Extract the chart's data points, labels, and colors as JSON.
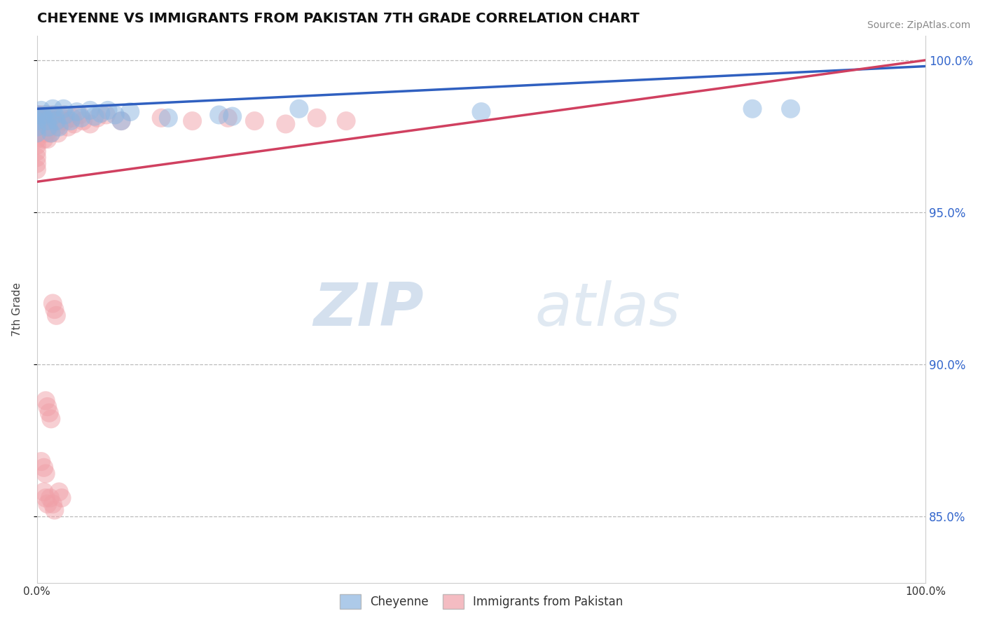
{
  "title": "CHEYENNE VS IMMIGRANTS FROM PAKISTAN 7TH GRADE CORRELATION CHART",
  "source_text": "Source: ZipAtlas.com",
  "ylabel": "7th Grade",
  "xlim": [
    0.0,
    1.0
  ],
  "ylim": [
    0.828,
    1.008
  ],
  "yticks": [
    0.85,
    0.9,
    0.95,
    1.0
  ],
  "ytick_labels": [
    "85.0%",
    "90.0%",
    "95.0%",
    "100.0%"
  ],
  "blue_color": "#8ab4e0",
  "pink_color": "#f0a0a8",
  "blue_line_color": "#3060C0",
  "pink_line_color": "#D04060",
  "watermark_zip": "ZIP",
  "watermark_atlas": "atlas",
  "blue_line_x": [
    0.0,
    1.0
  ],
  "blue_line_y": [
    0.984,
    0.998
  ],
  "pink_line_x": [
    0.0,
    1.0
  ],
  "pink_line_y": [
    0.96,
    1.0
  ],
  "blue_scatter_x": [
    0.0,
    0.0,
    0.0,
    0.0,
    0.005,
    0.007,
    0.01,
    0.012,
    0.013,
    0.016,
    0.018,
    0.02,
    0.022,
    0.025,
    0.03,
    0.032,
    0.038,
    0.045,
    0.05,
    0.06,
    0.065,
    0.072,
    0.08,
    0.088,
    0.095,
    0.105,
    0.148,
    0.205,
    0.22,
    0.295,
    0.5,
    0.805,
    0.848
  ],
  "blue_scatter_y": [
    0.982,
    0.98,
    0.978,
    0.976,
    0.9835,
    0.9815,
    0.982,
    0.98,
    0.978,
    0.976,
    0.984,
    0.982,
    0.98,
    0.978,
    0.984,
    0.982,
    0.98,
    0.983,
    0.981,
    0.9835,
    0.9815,
    0.9825,
    0.9835,
    0.982,
    0.98,
    0.983,
    0.981,
    0.982,
    0.9815,
    0.984,
    0.983,
    0.984,
    0.984
  ],
  "pink_scatter_x": [
    0.0,
    0.0,
    0.0,
    0.0,
    0.0,
    0.0,
    0.0,
    0.0,
    0.0,
    0.0,
    0.002,
    0.003,
    0.004,
    0.005,
    0.005,
    0.006,
    0.007,
    0.008,
    0.009,
    0.01,
    0.01,
    0.011,
    0.012,
    0.013,
    0.014,
    0.015,
    0.016,
    0.018,
    0.02,
    0.022,
    0.024,
    0.025,
    0.028,
    0.03,
    0.032,
    0.035,
    0.04,
    0.042,
    0.048,
    0.052,
    0.06,
    0.068,
    0.078,
    0.095,
    0.14,
    0.175,
    0.215,
    0.245,
    0.28,
    0.315,
    0.348,
    0.018,
    0.02,
    0.022,
    0.01,
    0.012,
    0.014,
    0.016,
    0.005,
    0.008,
    0.01,
    0.008,
    0.01,
    0.012,
    0.015,
    0.018,
    0.02,
    0.025,
    0.028
  ],
  "pink_scatter_y": [
    0.982,
    0.98,
    0.978,
    0.976,
    0.974,
    0.972,
    0.97,
    0.968,
    0.966,
    0.964,
    0.982,
    0.98,
    0.978,
    0.982,
    0.98,
    0.978,
    0.976,
    0.974,
    0.982,
    0.98,
    0.978,
    0.976,
    0.974,
    0.982,
    0.98,
    0.978,
    0.976,
    0.982,
    0.98,
    0.978,
    0.976,
    0.982,
    0.98,
    0.982,
    0.98,
    0.978,
    0.981,
    0.979,
    0.982,
    0.98,
    0.979,
    0.981,
    0.982,
    0.98,
    0.981,
    0.98,
    0.981,
    0.98,
    0.979,
    0.981,
    0.98,
    0.92,
    0.918,
    0.916,
    0.888,
    0.886,
    0.884,
    0.882,
    0.868,
    0.866,
    0.864,
    0.858,
    0.856,
    0.854,
    0.856,
    0.854,
    0.852,
    0.858,
    0.856
  ]
}
